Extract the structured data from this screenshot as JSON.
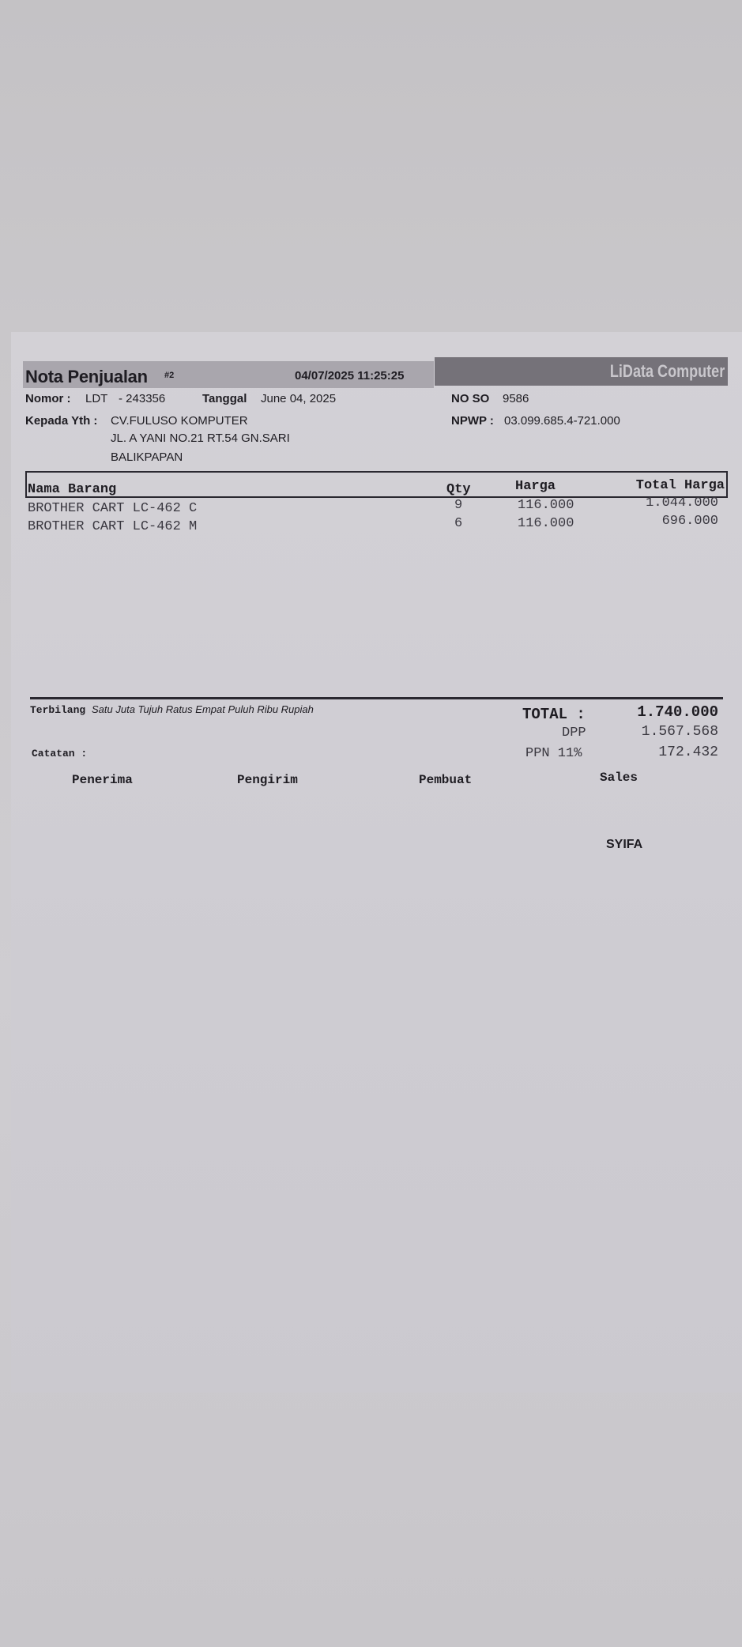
{
  "header": {
    "title": "Nota Penjualan",
    "copy_mark": "#2",
    "printed_at": "04/07/2025 11:25:25",
    "brand": "LiData Computer"
  },
  "info": {
    "nomor_label": "Nomor :",
    "nomor_prefix": "LDT",
    "nomor_value": "- 243356",
    "tanggal_label": "Tanggal",
    "tanggal_value": "June 04, 2025",
    "noso_label": "NO SO",
    "noso_value": "9586",
    "kepada_label": "Kepada Yth :",
    "customer_name": "CV.FULUSO KOMPUTER",
    "address_line1": "JL. A YANI NO.21 RT.54 GN.SARI",
    "address_line2": "BALIKPAPAN",
    "npwp_label": "NPWP :",
    "npwp_value": "03.099.685.4-721.000"
  },
  "table": {
    "columns": [
      "Nama Barang",
      "Qty",
      "Harga",
      "Total Harga"
    ],
    "rows": [
      {
        "name": "BROTHER CART LC-462 C",
        "qty": "9",
        "price": "116.000",
        "total": "1.044.000"
      },
      {
        "name": "BROTHER CART LC-462 M",
        "qty": "6",
        "price": "116.000",
        "total": "696.000"
      }
    ]
  },
  "summary": {
    "terbilang_label": "Terbilang",
    "terbilang_value": "Satu Juta Tujuh Ratus Empat Puluh  Ribu  Rupiah",
    "total_label": "TOTAL :",
    "total_value": "1.740.000",
    "dpp_label": "DPP",
    "dpp_value": "1.567.568",
    "ppn_label": "PPN 11%",
    "ppn_value": "172.432",
    "catatan_label": "Catatan :"
  },
  "signatures": {
    "penerima": "Penerima",
    "pengirim": "Pengirim",
    "pembuat": "Pembuat",
    "sales": "Sales",
    "sales_name": "SYIFA"
  }
}
